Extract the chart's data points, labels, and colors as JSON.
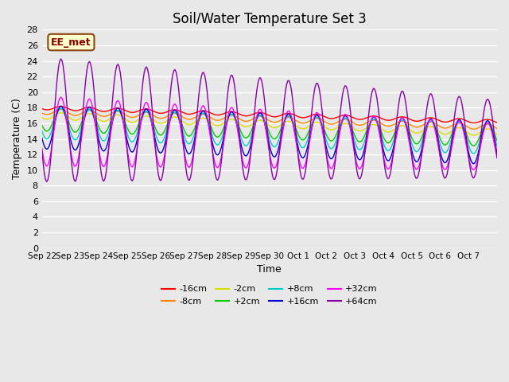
{
  "title": "Soil/Water Temperature Set 3",
  "xlabel": "Time",
  "ylabel": "Temperature (C)",
  "ylim": [
    0,
    28
  ],
  "n_days": 16,
  "watermark": "EE_met",
  "legend_entries": [
    "-16cm",
    "-8cm",
    "-2cm",
    "+2cm",
    "+8cm",
    "+16cm",
    "+32cm",
    "+64cm"
  ],
  "line_colors": [
    "#ff0000",
    "#ff8800",
    "#dddd00",
    "#00cc00",
    "#00cccc",
    "#0000cc",
    "#ff00ff",
    "#8800aa"
  ],
  "background_color": "#e8e8e8",
  "plot_bg_color": "#e8e8e8",
  "grid_color": "#ffffff",
  "tick_positions": [
    0,
    1,
    2,
    3,
    4,
    5,
    6,
    7,
    8,
    9,
    10,
    11,
    12,
    13,
    14,
    15
  ],
  "tick_labels": [
    "Sep 22",
    "Sep 23",
    "Sep 24",
    "Sep 25",
    "Sep 26",
    "Sep 27",
    "Sep 28",
    "Sep 29",
    "Sep 30",
    "Oct 1",
    "Oct 2",
    "Oct 3",
    "Oct 4",
    "Oct 5",
    "Oct 6",
    "Oct 7"
  ]
}
